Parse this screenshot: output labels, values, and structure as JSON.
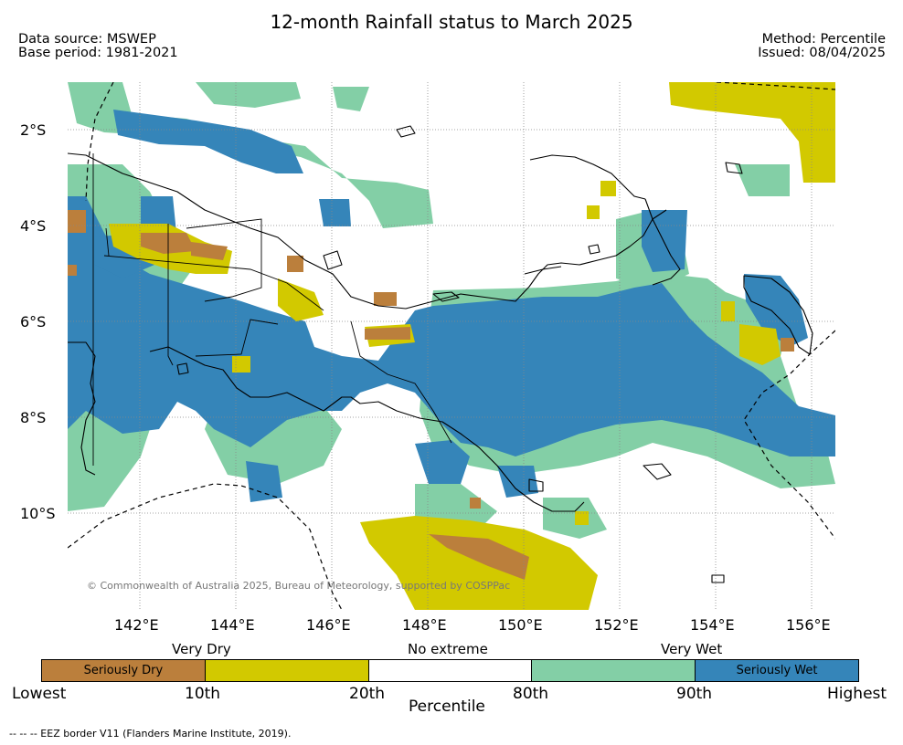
{
  "title": "12-month Rainfall status to March 2025",
  "header": {
    "data_source": "Data source: MSWEP",
    "base_period": "Base period: 1981-2021",
    "method": "Method: Percentile",
    "issued": "Issued: 08/04/2025"
  },
  "map": {
    "lat_labels": [
      "2°S",
      "4°S",
      "6°S",
      "8°S",
      "10°S"
    ],
    "lon_labels": [
      "142°E",
      "144°E",
      "146°E",
      "148°E",
      "150°E",
      "152°E",
      "154°E",
      "156°E"
    ],
    "copyright": "© Commonwealth of Australia 2025, Bureau of Meteorology, supported by COSPPac"
  },
  "legend": {
    "top_labels": [
      "Very Dry",
      "No extreme",
      "Very Wet"
    ],
    "bottom_labels": [
      "Lowest",
      "10th",
      "20th",
      "80th",
      "90th",
      "Highest"
    ],
    "axis_title": "Percentile",
    "categories": [
      {
        "label": "Seriously Dry",
        "color": "#bb7f3c"
      },
      {
        "label": "",
        "color": "#d2c900"
      },
      {
        "label": "",
        "color": "#ffffff"
      },
      {
        "label": "",
        "color": "#83cfa6"
      },
      {
        "label": "Seriously Wet",
        "color": "#3585b9"
      }
    ]
  },
  "footnote": "--  --  -- EEZ border V11 (Flanders Marine Institute, 2019)."
}
